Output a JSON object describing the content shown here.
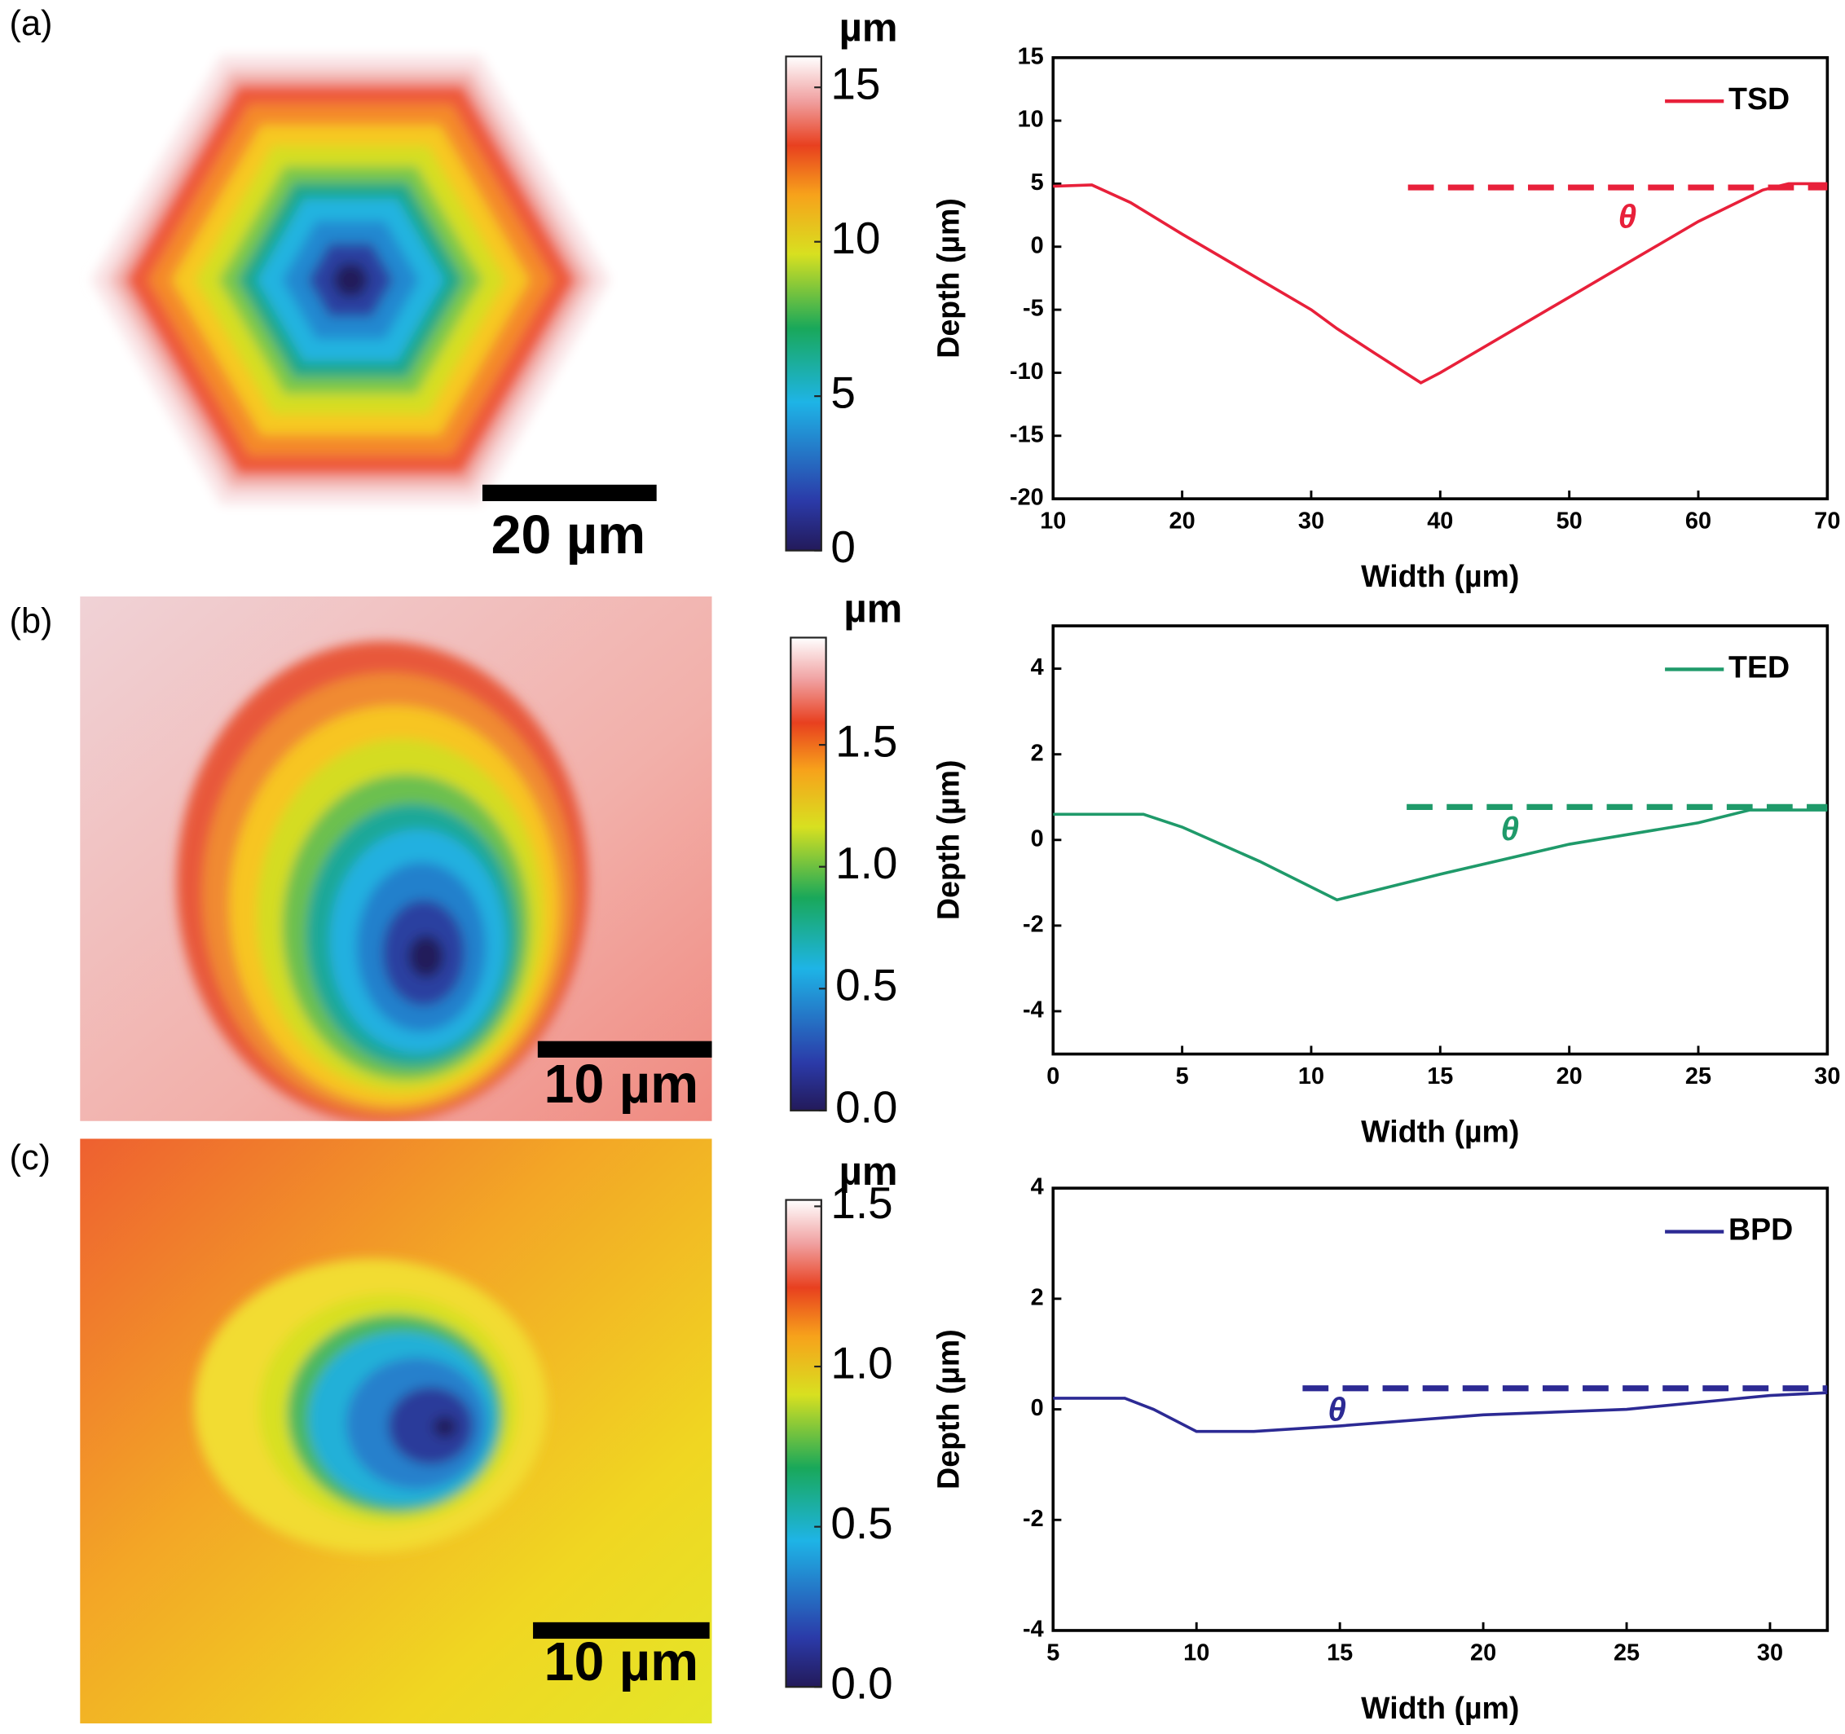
{
  "panels": [
    {
      "label": "(a)",
      "map": {
        "scale_bar": "20 µm",
        "colorbar": {
          "title": "µm",
          "lim": [
            0,
            16
          ],
          "ticks": [
            0,
            5,
            10,
            15
          ]
        }
      }
    },
    {
      "label": "(b)",
      "map": {
        "scale_bar": "10 µm",
        "colorbar": {
          "title": "µm",
          "lim": [
            0,
            1.94
          ],
          "ticks": [
            {
              "value": 0,
              "label": "0.0"
            },
            {
              "value": 0.5,
              "label": "0.5"
            },
            {
              "value": 1,
              "label": "1.0"
            },
            {
              "value": 1.5,
              "label": "1.5"
            }
          ]
        }
      }
    },
    {
      "label": "(c)",
      "map": {
        "scale_bar": "10 µm",
        "colorbar": {
          "title": "µm",
          "lim": [
            0,
            1.52
          ],
          "ticks": [
            {
              "value": 0,
              "label": "0.0"
            },
            {
              "value": 0.5,
              "label": "0.5"
            },
            {
              "value": 1,
              "label": "1.0"
            },
            {
              "value": 1.5,
              "label": "1.5"
            }
          ]
        }
      }
    }
  ],
  "chart_data": [
    {
      "type": "line",
      "x_label": "Width (µm)",
      "y_label": "Depth (µm)",
      "xlim": [
        10,
        70
      ],
      "ylim": [
        -20,
        15
      ],
      "xticks": [
        10,
        20,
        30,
        40,
        50,
        60,
        70
      ],
      "yticks": [
        -20,
        -15,
        -10,
        -5,
        0,
        5,
        10,
        15
      ],
      "x": [
        10,
        13,
        16,
        20,
        25,
        30,
        32,
        35,
        38.5,
        40,
        45,
        50,
        55,
        60,
        65,
        67,
        70
      ],
      "series": [
        {
          "name": "TSD",
          "color": "#e8203a",
          "values": [
            4.8,
            4.9,
            3.5,
            1,
            -2,
            -5,
            -6.5,
            -8.5,
            -10.8,
            -10,
            -7,
            -4,
            -1,
            2,
            4.5,
            5,
            5
          ]
        }
      ],
      "reference_line": {
        "x": [
          37.5,
          70
        ],
        "y": 4.7,
        "style": "dashed"
      },
      "annotation": {
        "text": "θ",
        "x": 54.5,
        "y": 2.2
      },
      "legend": "upper right"
    },
    {
      "type": "line",
      "x_label": "Width (µm)",
      "y_label": "Depth (µm)",
      "xlim": [
        0,
        30
      ],
      "ylim": [
        -5,
        5
      ],
      "xticks": [
        0,
        5,
        10,
        15,
        20,
        25,
        30
      ],
      "yticks": [
        -4,
        -2,
        0,
        2,
        4
      ],
      "x": [
        0,
        3.5,
        5,
        8,
        11,
        13,
        15,
        20,
        25,
        27,
        30
      ],
      "series": [
        {
          "name": "TED",
          "color": "#1f9a6a",
          "values": [
            0.6,
            0.6,
            0.3,
            -0.5,
            -1.4,
            -1.1,
            -0.8,
            -0.1,
            0.4,
            0.7,
            0.7
          ]
        }
      ],
      "reference_line": {
        "x": [
          13.7,
          30
        ],
        "y": 0.77,
        "style": "dashed"
      },
      "annotation": {
        "text": "θ",
        "x": 17.7,
        "y": 0.2
      },
      "legend": "upper right"
    },
    {
      "type": "line",
      "x_label": "Width (µm)",
      "y_label": "Depth (µm)",
      "xlim": [
        5,
        32
      ],
      "ylim": [
        -4,
        4
      ],
      "xticks": [
        5,
        10,
        15,
        20,
        25,
        30
      ],
      "yticks": [
        -4,
        -2,
        0,
        2,
        4
      ],
      "x": [
        5,
        7.5,
        8.5,
        10,
        12,
        15,
        20,
        25,
        28,
        30,
        32
      ],
      "series": [
        {
          "name": "BPD",
          "color": "#2c2a94",
          "values": [
            0.2,
            0.2,
            0,
            -0.4,
            -0.4,
            -0.3,
            -0.1,
            0,
            0.15,
            0.25,
            0.3
          ]
        }
      ],
      "reference_line": {
        "x": [
          13.7,
          32
        ],
        "y": 0.38,
        "style": "dashed"
      },
      "annotation": {
        "text": "θ",
        "x": 14.9,
        "y": -0.05
      },
      "legend": "upper right"
    }
  ]
}
